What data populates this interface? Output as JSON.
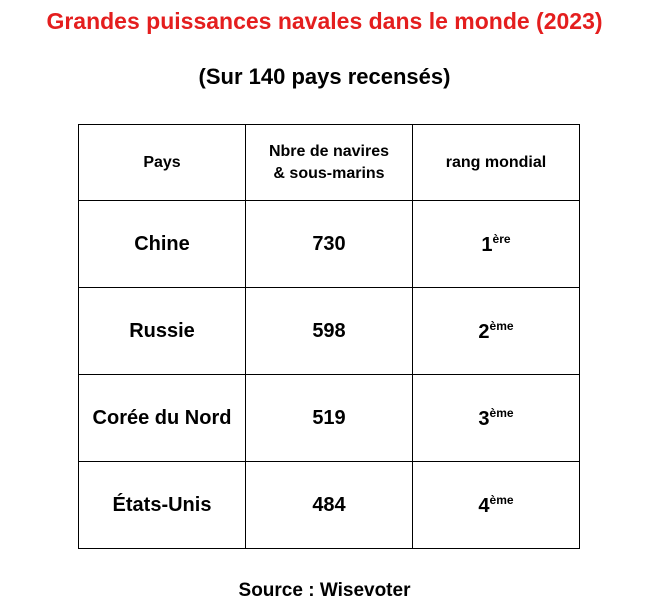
{
  "header": {
    "title": "Grandes puissances navales dans le monde (2023)",
    "subtitle": "(Sur 140 pays recensés)"
  },
  "table": {
    "columns": [
      "Pays",
      "Nbre de navires & sous-marins",
      "rang mondial"
    ],
    "rows": [
      {
        "country": "Chine",
        "count": 730,
        "rank": "1",
        "rank_suffix": "ère"
      },
      {
        "country": "Russie",
        "count": 598,
        "rank": "2",
        "rank_suffix": "ème"
      },
      {
        "country": "Corée du Nord",
        "count": 519,
        "rank": "3",
        "rank_suffix": "ème"
      },
      {
        "country": "États-Unis",
        "count": 484,
        "rank": "4",
        "rank_suffix": "ème"
      }
    ]
  },
  "footer": {
    "source": "Source : Wisevoter"
  }
}
